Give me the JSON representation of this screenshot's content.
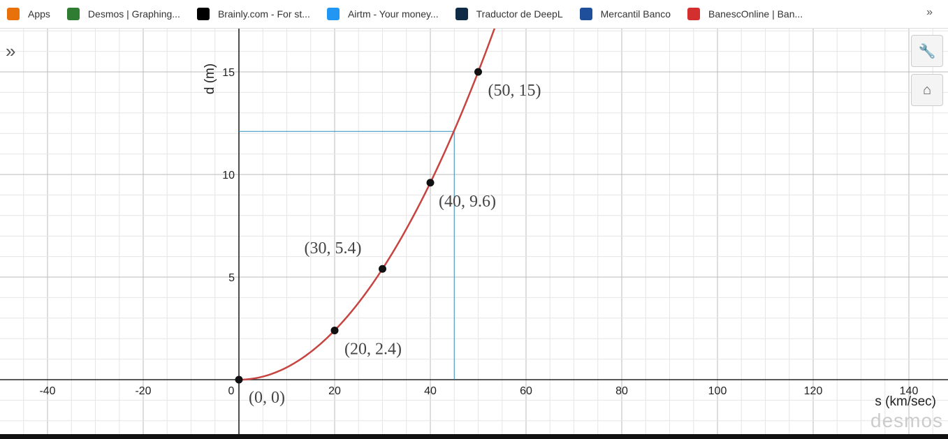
{
  "bookmarks": [
    {
      "label": "Apps",
      "icon": "apps-grid-icon",
      "color": "#e8710a"
    },
    {
      "label": "Desmos | Graphing...",
      "icon": "desmos-icon",
      "color": "#2e7d32"
    },
    {
      "label": "Brainly.com - For st...",
      "icon": "brainly-icon",
      "color": "#000000"
    },
    {
      "label": "Airtm - Your money...",
      "icon": "cloud-icon",
      "color": "#2196f3"
    },
    {
      "label": "Traductor de DeepL",
      "icon": "deepl-icon",
      "color": "#0f2b46"
    },
    {
      "label": "Mercantil Banco",
      "icon": "mercantil-icon",
      "color": "#1f4e9a"
    },
    {
      "label": "BanescOnline | Ban...",
      "icon": "banesco-icon",
      "color": "#d32f2f"
    }
  ],
  "more_label": "»",
  "watermark": "desmos",
  "chart_data": {
    "type": "line",
    "xlabel": "s (km/sec)",
    "ylabel": "d (m)",
    "xlim": [
      -50,
      148
    ],
    "ylim": [
      -2.7,
      17.2
    ],
    "grid": true,
    "xticks": [
      -40,
      -20,
      0,
      20,
      40,
      60,
      80,
      100,
      120,
      140
    ],
    "yticks": [
      5,
      10,
      15
    ],
    "curve": {
      "formula": "d = 0.006 s^2",
      "color": "#c74440",
      "domain": [
        0,
        55
      ]
    },
    "points": [
      {
        "x": 0,
        "y": 0,
        "label": "(0, 0)"
      },
      {
        "x": 20,
        "y": 2.4,
        "label": "(20, 2.4)"
      },
      {
        "x": 30,
        "y": 5.4,
        "label": "(30, 5.4)"
      },
      {
        "x": 40,
        "y": 9.6,
        "label": "(40, 9.6)"
      },
      {
        "x": 50,
        "y": 15,
        "label": "(50, 15)"
      }
    ],
    "guide_lines": {
      "color": "#2d8fc0",
      "x": 45,
      "y": 12.1
    }
  }
}
